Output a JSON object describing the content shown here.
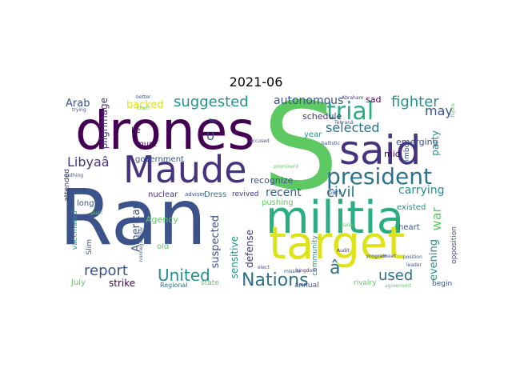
{
  "title": "2021-06",
  "colors": {
    "dark_purple": "#440154",
    "purple": "#46327e",
    "indigo": "#365c8d",
    "blue": "#3b528b",
    "teal_blue": "#2c728e",
    "teal": "#21918c",
    "green_teal": "#28ae80",
    "green": "#5ec962",
    "light_green": "#addc30",
    "yellow": "#dde318"
  },
  "words": {
    "Ran": "Ran",
    "S": "S",
    "drones": "drones",
    "said": "said",
    "militia": "militia",
    "target": "target",
    "Maude": "Maude",
    "president": "president",
    "trial": "trial",
    "Nations": "Nations",
    "United": "United",
    "report": "report",
    "suggested": "suggested",
    "fighter": "fighter",
    "Libyaa": "Libyaâ",
    "civil": "civil",
    "selected": "selected",
    "autonomous": "autonomous",
    "used": "used",
    "may": "may",
    "a_hat": "â",
    "backed": "backed",
    "Arab": "Arab",
    "recent": "recent",
    "carrying": "carrying",
    "war": "war",
    "evening": "evening",
    "party": "party",
    "American": "American",
    "suspected": "suspected",
    "sensitive": "sensitive",
    "defense": "defense",
    "strike": "strike",
    "pilgrimage": "pilgrimage",
    "government": "government",
    "must": "must",
    "recognize": "recognize",
    "pushing": "pushing",
    "Dress": "Dress",
    "revived": "revived",
    "nuclear": "nuclear",
    "adviser": "adviser",
    "Agency": "Agency",
    "emerging": "emerging",
    "mid": "mid",
    "existed": "existed",
    "heart": "heart",
    "U": "U",
    "lie": "lie",
    "year": "year",
    "schedule": "schedule",
    "sad": "sad",
    "long": "long",
    "vaccinated": "vaccinated",
    "Slim": "Slim",
    "July": "July",
    "old": "old",
    "state": "state",
    "Regional": "Regional",
    "community": "community",
    "annual": "annual",
    "rivalry": "rivalry",
    "begin": "begin",
    "opposition": "opposition",
    "attended": "attended",
    "part": "part",
    "limbo": "limbo",
    "better": "better",
    "trying": "trying",
    "Tehran": "Tehranâ",
    "Abraham": "Abraham",
    "accused": "accused",
    "ballistic": "ballistic",
    "prominent": "prominent",
    "chart": "chart",
    "clothing": "clothing",
    "missile": "missile",
    "kingdom": "kingdom",
    "Raise": "Raise",
    "Audit": "Audit",
    "elect": "elect",
    "agreement": "agreement",
    "position": "position",
    "leader": "leader",
    "meet": "meet",
    "program": "program",
    "figure": "figure",
    "Two": "Two",
    "push": "push",
    "nonnegotiable": "nonnegotiable"
  }
}
